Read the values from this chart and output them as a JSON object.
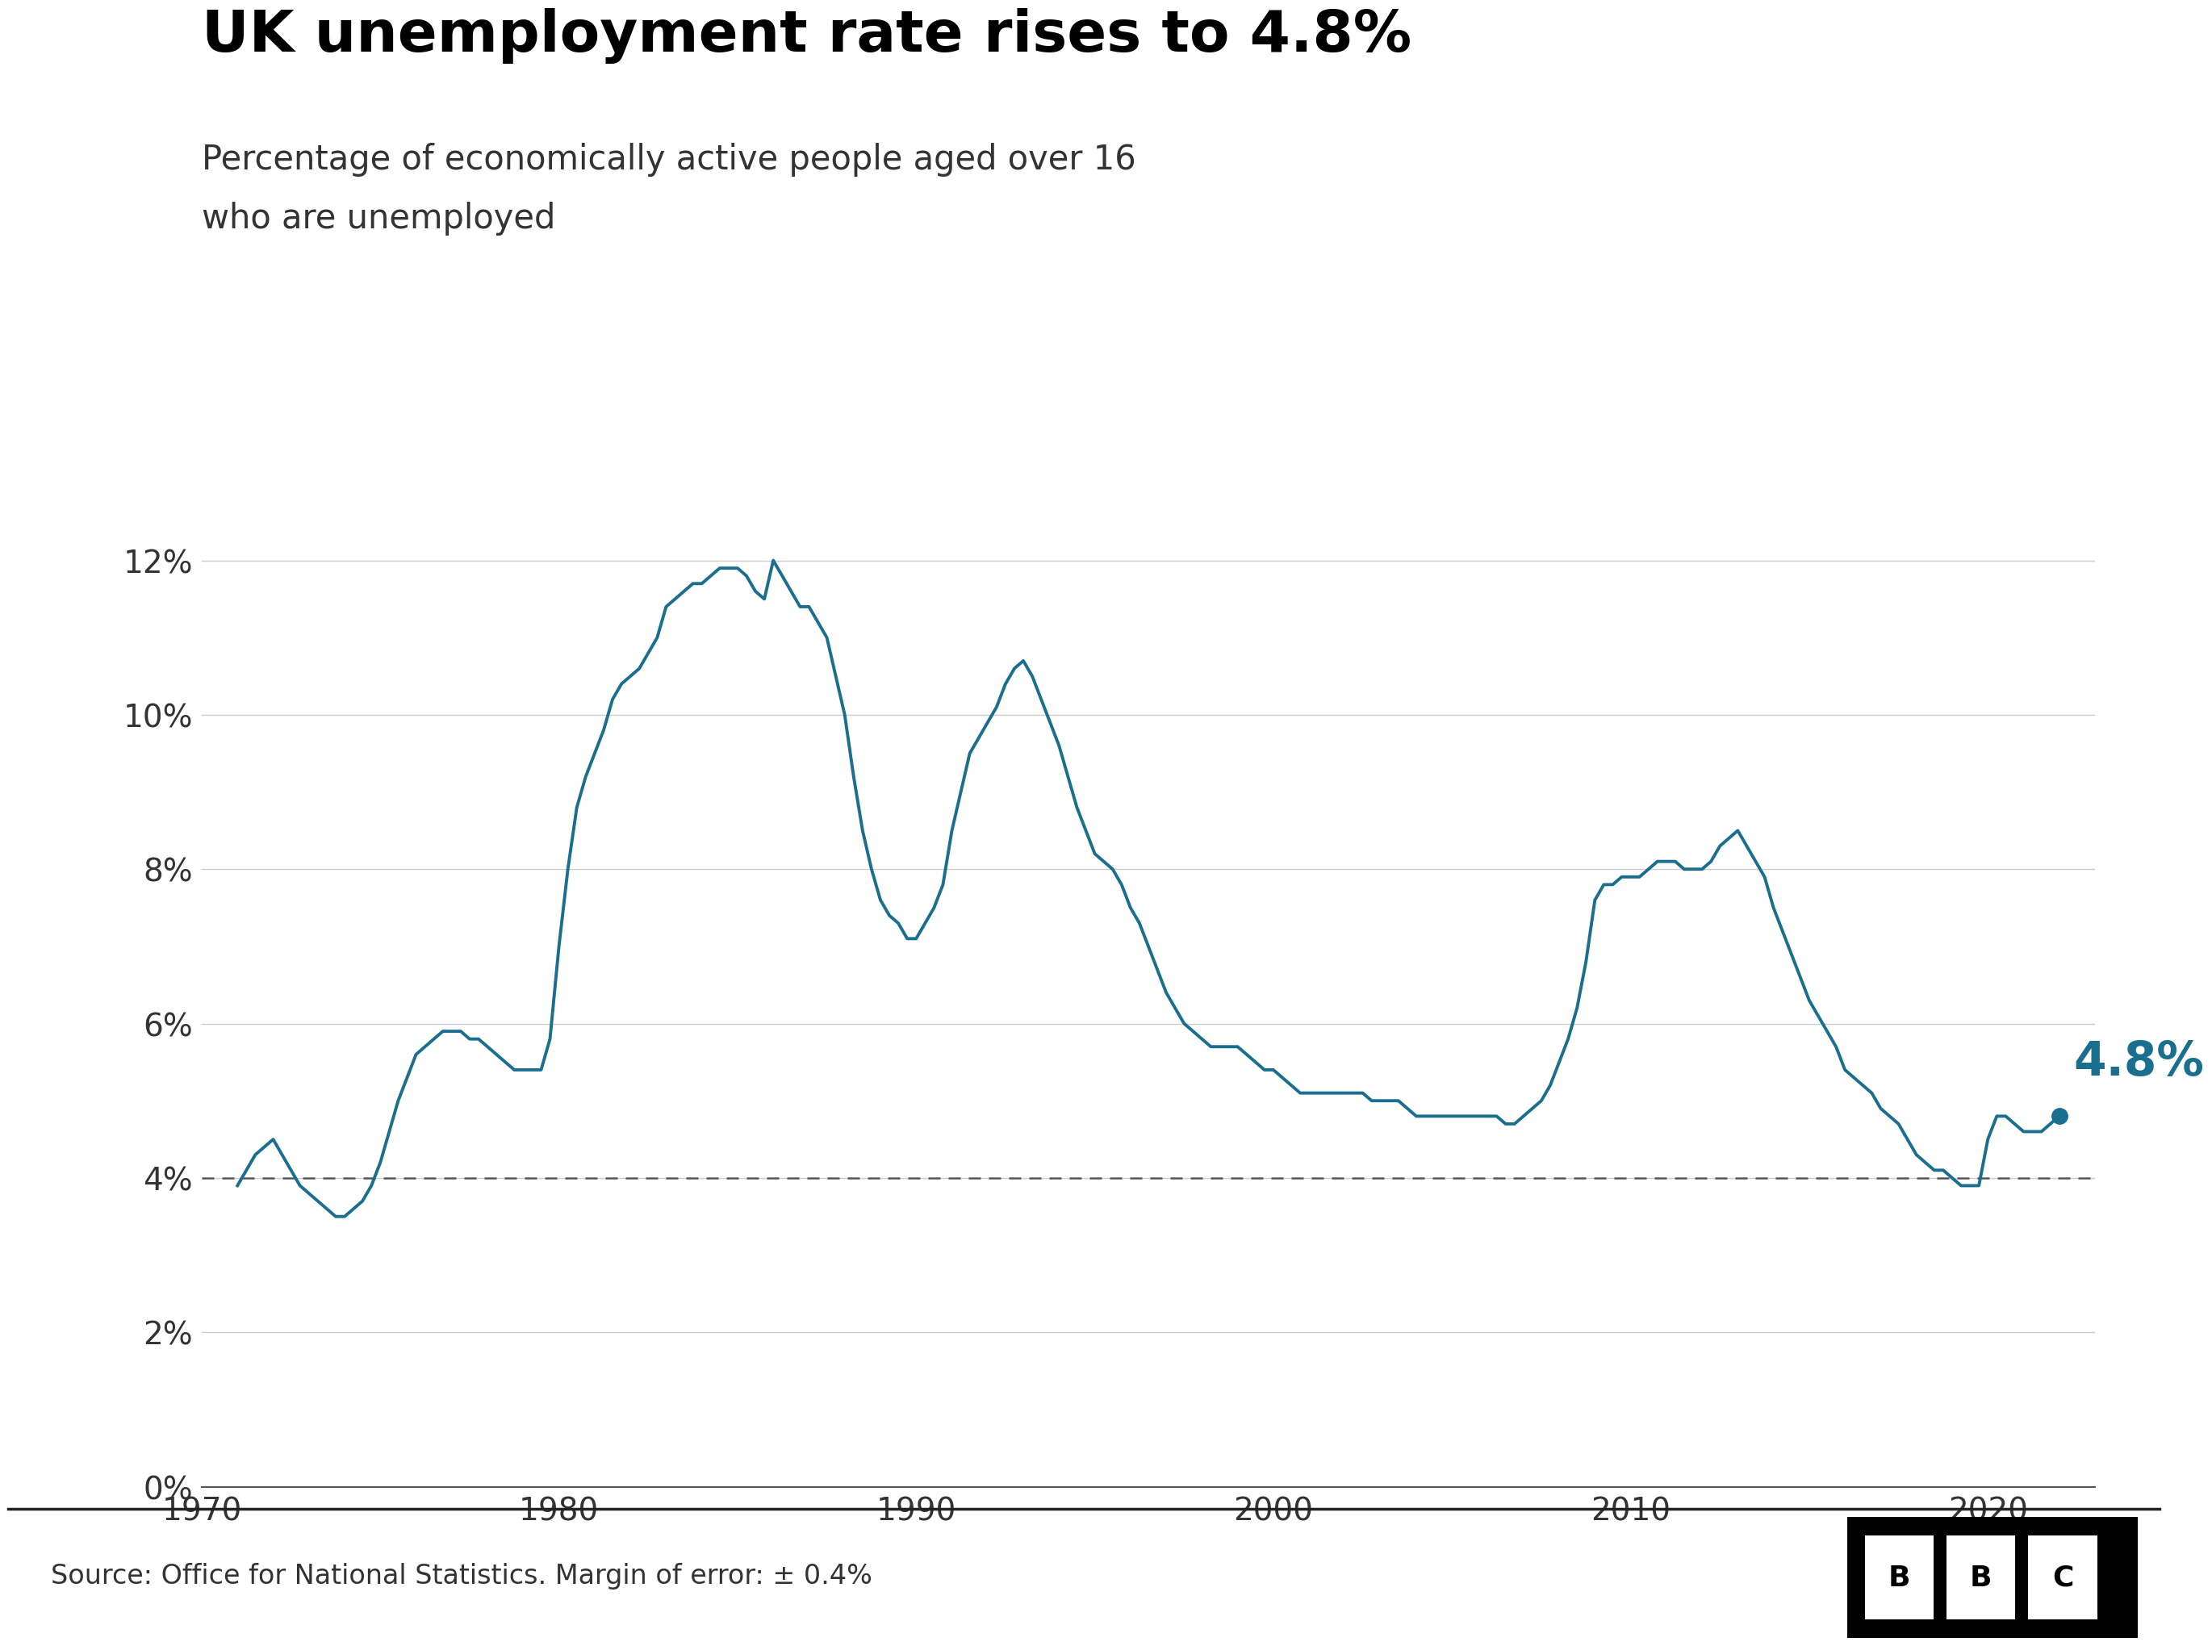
{
  "title": "UK unemployment rate rises to 4.8%",
  "subtitle_line1": "Percentage of economically active people aged over 16",
  "subtitle_line2": "who are unemployed",
  "source": "Source: Office for National Statistics. Margin of error: ± 0.4%",
  "line_color": "#1a6e8e",
  "annotation_value": "4.8%",
  "annotation_color": "#1a6e8e",
  "dashed_line_y": 4.0,
  "background_color": "#ffffff",
  "ytick_labels": [
    "0%",
    "2%",
    "4%",
    "6%",
    "8%",
    "10%",
    "12%"
  ],
  "ytick_values": [
    0,
    2,
    4,
    6,
    8,
    10,
    12
  ],
  "xtick_labels": [
    "1970",
    "1980",
    "1990",
    "2000",
    "2010",
    "2020"
  ],
  "xtick_values": [
    1970,
    1980,
    1990,
    2000,
    2010,
    2020
  ],
  "ylim": [
    0,
    13.5
  ],
  "xlim": [
    1970,
    2023
  ],
  "title_fontsize": 52,
  "subtitle_fontsize": 30,
  "tick_fontsize": 28,
  "annotation_fontsize": 42,
  "source_fontsize": 24,
  "years": [
    1971.0,
    1971.25,
    1971.5,
    1971.75,
    1972.0,
    1972.25,
    1972.5,
    1972.75,
    1973.0,
    1973.25,
    1973.5,
    1973.75,
    1974.0,
    1974.25,
    1974.5,
    1974.75,
    1975.0,
    1975.25,
    1975.5,
    1975.75,
    1976.0,
    1976.25,
    1976.5,
    1976.75,
    1977.0,
    1977.25,
    1977.5,
    1977.75,
    1978.0,
    1978.25,
    1978.5,
    1978.75,
    1979.0,
    1979.25,
    1979.5,
    1979.75,
    1980.0,
    1980.25,
    1980.5,
    1980.75,
    1981.0,
    1981.25,
    1981.5,
    1981.75,
    1982.0,
    1982.25,
    1982.5,
    1982.75,
    1983.0,
    1983.25,
    1983.5,
    1983.75,
    1984.0,
    1984.25,
    1984.5,
    1984.75,
    1985.0,
    1985.25,
    1985.5,
    1985.75,
    1986.0,
    1986.25,
    1986.5,
    1986.75,
    1987.0,
    1987.25,
    1987.5,
    1987.75,
    1988.0,
    1988.25,
    1988.5,
    1988.75,
    1989.0,
    1989.25,
    1989.5,
    1989.75,
    1990.0,
    1990.25,
    1990.5,
    1990.75,
    1991.0,
    1991.25,
    1991.5,
    1991.75,
    1992.0,
    1992.25,
    1992.5,
    1992.75,
    1993.0,
    1993.25,
    1993.5,
    1993.75,
    1994.0,
    1994.25,
    1994.5,
    1994.75,
    1995.0,
    1995.25,
    1995.5,
    1995.75,
    1996.0,
    1996.25,
    1996.5,
    1996.75,
    1997.0,
    1997.25,
    1997.5,
    1997.75,
    1998.0,
    1998.25,
    1998.5,
    1998.75,
    1999.0,
    1999.25,
    1999.5,
    1999.75,
    2000.0,
    2000.25,
    2000.5,
    2000.75,
    2001.0,
    2001.25,
    2001.5,
    2001.75,
    2002.0,
    2002.25,
    2002.5,
    2002.75,
    2003.0,
    2003.25,
    2003.5,
    2003.75,
    2004.0,
    2004.25,
    2004.5,
    2004.75,
    2005.0,
    2005.25,
    2005.5,
    2005.75,
    2006.0,
    2006.25,
    2006.5,
    2006.75,
    2007.0,
    2007.25,
    2007.5,
    2007.75,
    2008.0,
    2008.25,
    2008.5,
    2008.75,
    2009.0,
    2009.25,
    2009.5,
    2009.75,
    2010.0,
    2010.25,
    2010.5,
    2010.75,
    2011.0,
    2011.25,
    2011.5,
    2011.75,
    2012.0,
    2012.25,
    2012.5,
    2012.75,
    2013.0,
    2013.25,
    2013.5,
    2013.75,
    2014.0,
    2014.25,
    2014.5,
    2014.75,
    2015.0,
    2015.25,
    2015.5,
    2015.75,
    2016.0,
    2016.25,
    2016.5,
    2016.75,
    2017.0,
    2017.25,
    2017.5,
    2017.75,
    2018.0,
    2018.25,
    2018.5,
    2018.75,
    2019.0,
    2019.25,
    2019.5,
    2019.75,
    2020.0,
    2020.25,
    2020.5,
    2020.75,
    2021.0,
    2021.25,
    2021.5,
    2021.75,
    2022.0
  ],
  "values": [
    3.9,
    4.1,
    4.3,
    4.4,
    4.5,
    4.3,
    4.1,
    3.9,
    3.8,
    3.7,
    3.6,
    3.5,
    3.5,
    3.6,
    3.7,
    3.9,
    4.2,
    4.6,
    5.0,
    5.3,
    5.6,
    5.7,
    5.8,
    5.9,
    5.9,
    5.9,
    5.8,
    5.8,
    5.7,
    5.6,
    5.5,
    5.4,
    5.4,
    5.4,
    5.4,
    5.8,
    7.0,
    8.0,
    8.8,
    9.2,
    9.5,
    9.8,
    10.2,
    10.4,
    10.5,
    10.6,
    10.8,
    11.0,
    11.4,
    11.5,
    11.6,
    11.7,
    11.7,
    11.8,
    11.9,
    11.9,
    11.9,
    11.8,
    11.6,
    11.5,
    12.0,
    11.8,
    11.6,
    11.4,
    11.4,
    11.2,
    11.0,
    10.5,
    10.0,
    9.2,
    8.5,
    8.0,
    7.6,
    7.4,
    7.3,
    7.1,
    7.1,
    7.3,
    7.5,
    7.8,
    8.5,
    9.0,
    9.5,
    9.7,
    9.9,
    10.1,
    10.4,
    10.6,
    10.7,
    10.5,
    10.2,
    9.9,
    9.6,
    9.2,
    8.8,
    8.5,
    8.2,
    8.1,
    8.0,
    7.8,
    7.5,
    7.3,
    7.0,
    6.7,
    6.4,
    6.2,
    6.0,
    5.9,
    5.8,
    5.7,
    5.7,
    5.7,
    5.7,
    5.6,
    5.5,
    5.4,
    5.4,
    5.3,
    5.2,
    5.1,
    5.1,
    5.1,
    5.1,
    5.1,
    5.1,
    5.1,
    5.1,
    5.0,
    5.0,
    5.0,
    5.0,
    4.9,
    4.8,
    4.8,
    4.8,
    4.8,
    4.8,
    4.8,
    4.8,
    4.8,
    4.8,
    4.8,
    4.7,
    4.7,
    4.8,
    4.9,
    5.0,
    5.2,
    5.5,
    5.8,
    6.2,
    6.8,
    7.6,
    7.8,
    7.8,
    7.9,
    7.9,
    7.9,
    8.0,
    8.1,
    8.1,
    8.1,
    8.0,
    8.0,
    8.0,
    8.1,
    8.3,
    8.4,
    8.5,
    8.3,
    8.1,
    7.9,
    7.5,
    7.2,
    6.9,
    6.6,
    6.3,
    6.1,
    5.9,
    5.7,
    5.4,
    5.3,
    5.2,
    5.1,
    4.9,
    4.8,
    4.7,
    4.5,
    4.3,
    4.2,
    4.1,
    4.1,
    4.0,
    3.9,
    3.9,
    3.9,
    4.5,
    4.8,
    4.8,
    4.7,
    4.6,
    4.6,
    4.6,
    4.7,
    4.8
  ],
  "last_year": 2022.0,
  "last_value": 4.8
}
